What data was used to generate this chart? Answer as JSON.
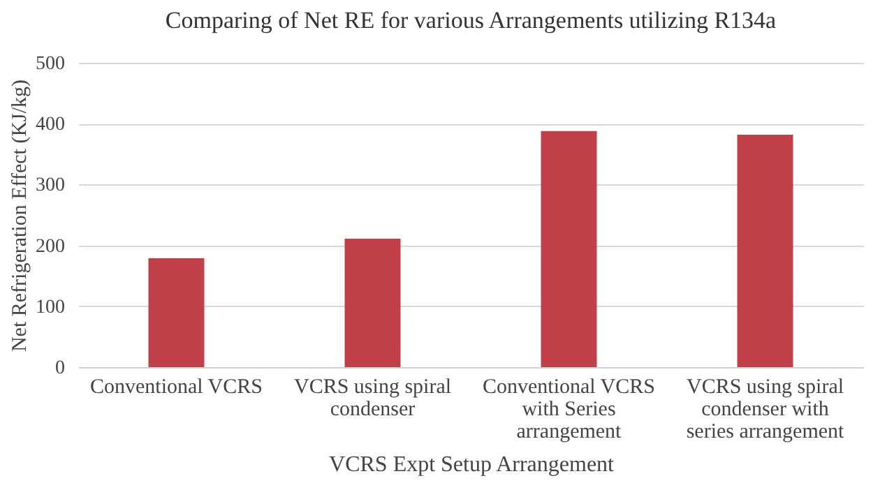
{
  "chart_data": {
    "type": "bar",
    "title": "Comparing of Net RE for various Arrangements utilizing R134a",
    "xlabel": "VCRS Expt Setup Arrangement",
    "ylabel": "Net Refrigeration Effect (KJ/kg)",
    "categories": [
      "Conventional VCRS",
      "VCRS using spiral condenser",
      "Conventional VCRS with Series arrangement",
      "VCRS using spiral condenser with series arrangement"
    ],
    "values": [
      179,
      211,
      388,
      382
    ],
    "color": "#c0404a",
    "ylim": [
      0,
      500
    ],
    "yticks": [
      0,
      100,
      200,
      300,
      400,
      500
    ],
    "grid": "y"
  }
}
